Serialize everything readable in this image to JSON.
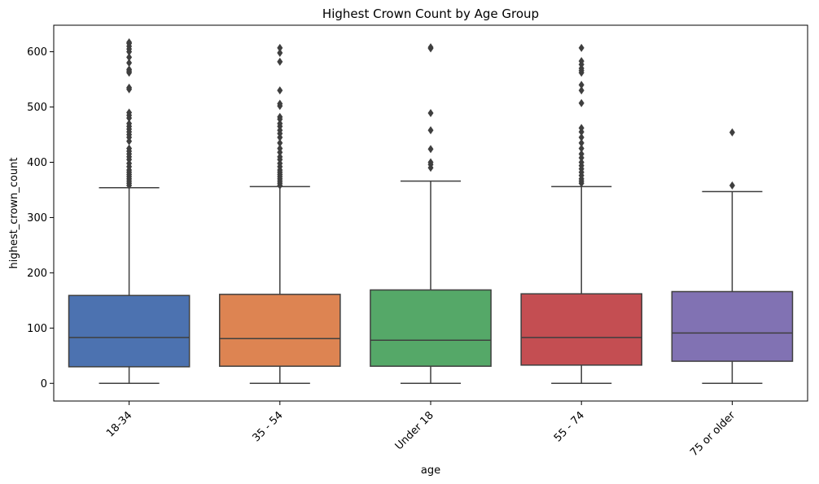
{
  "chart_data": {
    "type": "box",
    "title": "Highest Crown Count by Age Group",
    "xlabel": "age",
    "ylabel": "highest_crown_count",
    "ylim": [
      -32,
      648
    ],
    "yticks": [
      0,
      100,
      200,
      300,
      400,
      500,
      600
    ],
    "grid": false,
    "categories": [
      "18-34",
      "35 - 54",
      "Under 18",
      "55 - 74",
      "75 or older"
    ],
    "boxes": [
      {
        "category": "18-34",
        "color": "#4c72b0",
        "min": 0,
        "q1": 30,
        "median": 83,
        "q3": 159,
        "whisker_high": 354,
        "outliers": [
          358,
          362,
          366,
          370,
          374,
          378,
          382,
          386,
          392,
          398,
          405,
          410,
          415,
          420,
          425,
          438,
          445,
          450,
          455,
          460,
          465,
          470,
          480,
          485,
          490,
          532,
          535,
          562,
          565,
          568,
          580,
          590,
          600,
          605,
          610,
          615,
          617
        ]
      },
      {
        "category": "35 - 54",
        "color": "#dd8452",
        "min": 0,
        "q1": 31,
        "median": 81,
        "q3": 161,
        "whisker_high": 356,
        "outliers": [
          358,
          362,
          366,
          370,
          374,
          378,
          382,
          386,
          392,
          398,
          405,
          410,
          418,
          425,
          435,
          445,
          452,
          458,
          465,
          470,
          478,
          482,
          502,
          506,
          530,
          582,
          598,
          607
        ]
      },
      {
        "category": "Under 18",
        "color": "#55a868",
        "min": 0,
        "q1": 31,
        "median": 78,
        "q3": 169,
        "whisker_high": 366,
        "outliers": [
          390,
          396,
          400,
          424,
          458,
          489,
          606,
          608
        ]
      },
      {
        "category": "55 - 74",
        "color": "#c44e52",
        "min": 0,
        "q1": 33,
        "median": 83,
        "q3": 162,
        "whisker_high": 356,
        "outliers": [
          362,
          366,
          370,
          376,
          382,
          388,
          394,
          400,
          408,
          415,
          425,
          435,
          445,
          455,
          462,
          507,
          530,
          540,
          562,
          566,
          570,
          577,
          583,
          607
        ]
      },
      {
        "category": "75 or older",
        "color": "#8172b3",
        "min": 0,
        "q1": 40,
        "median": 91,
        "q3": 166,
        "whisker_high": 347,
        "outliers": [
          358,
          454
        ]
      }
    ]
  }
}
